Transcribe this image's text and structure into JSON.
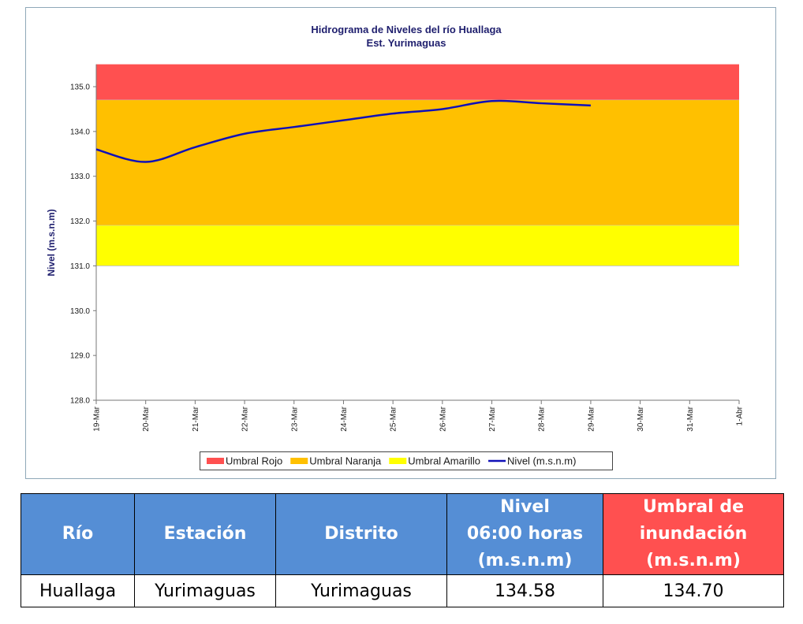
{
  "chart_data": {
    "type": "line",
    "title": "Hidrograma de Niveles del río Huallaga",
    "subtitle": "Est. Yurimaguas",
    "y_label": "Nivel (m.s.n.m)",
    "categories": [
      "19-Mar",
      "20-Mar",
      "21-Mar",
      "22-Mar",
      "23-Mar",
      "24-Mar",
      "25-Mar",
      "26-Mar",
      "27-Mar",
      "28-Mar",
      "29-Mar",
      "30-Mar",
      "31-Mar",
      "1-Abr"
    ],
    "series": [
      {
        "name": "Nivel (m.s.n.m)",
        "color": "#1010b8",
        "values": [
          133.6,
          133.32,
          133.65,
          133.95,
          134.1,
          134.25,
          134.4,
          134.5,
          134.68,
          134.63,
          134.58,
          null,
          null,
          null
        ]
      }
    ],
    "bands": [
      {
        "name": "Umbral Rojo",
        "color": "#ff5050",
        "value": 134.7
      },
      {
        "name": "Umbral Naranja",
        "color": "#ffc000",
        "value": 131.9
      },
      {
        "name": "Umbral Amarillo",
        "color": "#ffff00",
        "value": 131.0
      }
    ],
    "ylim": [
      128,
      135.5
    ],
    "yticks": [
      {
        "value": 128,
        "label": "128.0"
      },
      {
        "value": 129,
        "label": "129.0"
      },
      {
        "value": 130,
        "label": "130.0"
      },
      {
        "value": 131,
        "label": "131.0"
      },
      {
        "value": 132,
        "label": "132.0"
      },
      {
        "value": 133,
        "label": "133.0"
      },
      {
        "value": 134,
        "label": "134.0"
      },
      {
        "value": 135,
        "label": "135.0"
      }
    ],
    "legend": "bottom"
  },
  "table": {
    "header": [
      "Río",
      "Estación",
      "Distrito",
      "Nivel\n06:00 horas\n(m.s.n.m)",
      "Umbral de\ninundación\n(m.s.n.m)"
    ],
    "rows": [
      [
        "Huallaga",
        "Yurimaguas",
        "Yurimaguas",
        "134.58",
        "134.70"
      ]
    ]
  }
}
